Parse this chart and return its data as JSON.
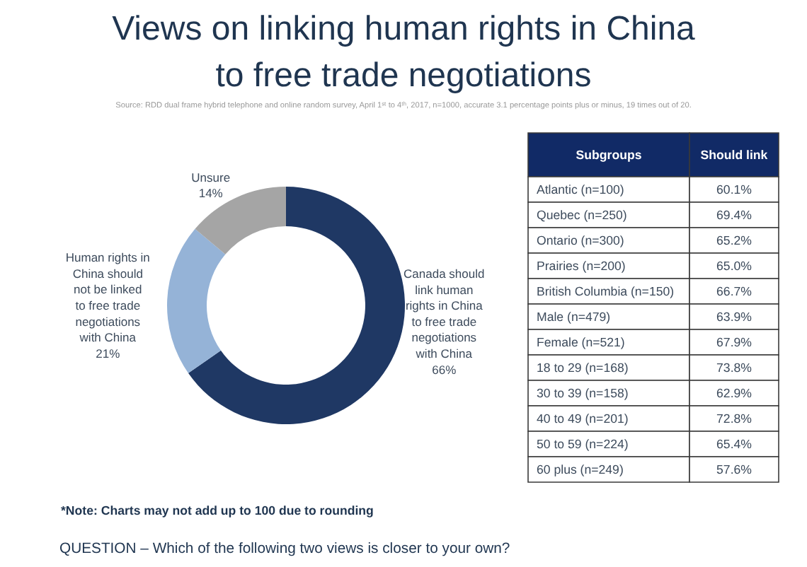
{
  "chart_data": [
    {
      "type": "donut",
      "title": "Views on linking human rights in China to free trade negotiations",
      "categories": [
        "Canada should link human rights in China to free trade negotiations with China",
        "Human rights in China should not be linked to free trade negotiations with China",
        "Unsure"
      ],
      "values": [
        66,
        21,
        14
      ],
      "colors": [
        "#1f3864",
        "#95b3d7",
        "#a5a5a5"
      ],
      "value_labels": [
        "66%",
        "21%",
        "14%"
      ],
      "annotations": [
        "Source: RDD dual frame hybrid telephone and online random survey, April 1ˢᵗ to 4ᵗʰ, 2017, n=1000, accurate 3.1 percentage points plus or minus, 19 times out of 20.",
        "*Note: Charts may not add up to 100 due to rounding",
        "QUESTION – Which of the following two views is closer to your own?"
      ]
    },
    {
      "type": "other",
      "xlabel": "Subgroups",
      "ylabel": "Should link",
      "categories": [
        "Atlantic (n=100)",
        "Quebec (n=250)",
        "Ontario (n=300)",
        "Prairies (n=200)",
        "British Columbia (n=150)",
        "Male (n=479)",
        "Female (n=521)",
        "18 to 29 (n=168)",
        "30 to 39 (n=158)",
        "40 to 49 (n=201)",
        "50 to 59 (n=224)",
        "60 plus (n=249)"
      ],
      "values": [
        60.1,
        69.4,
        65.2,
        65.0,
        66.7,
        63.9,
        67.9,
        73.8,
        62.9,
        72.8,
        65.4,
        57.6
      ],
      "value_labels": [
        "60.1%",
        "69.4%",
        "65.2%",
        "65.0%",
        "66.7%",
        "63.9%",
        "67.9%",
        "73.8%",
        "62.9%",
        "72.8%",
        "65.4%",
        "57.6%"
      ]
    }
  ]
}
